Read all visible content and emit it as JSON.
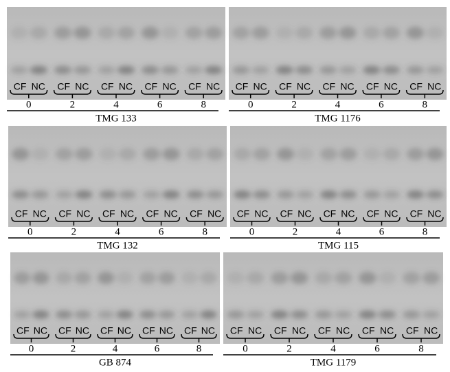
{
  "panels": [
    {
      "name": "TMG 133",
      "lanes": [
        "CF",
        "NC"
      ],
      "times": [
        "0",
        "2",
        "4",
        "6",
        "8"
      ]
    },
    {
      "name": "TMG 1176",
      "lanes": [
        "CF",
        "NC"
      ],
      "times": [
        "0",
        "2",
        "4",
        "6",
        "8"
      ]
    },
    {
      "name": "TMG 132",
      "lanes": [
        "CF",
        "NC"
      ],
      "times": [
        "0",
        "2",
        "4",
        "6",
        "8"
      ]
    },
    {
      "name": "TMG 115",
      "lanes": [
        "CF",
        "NC"
      ],
      "times": [
        "0",
        "2",
        "4",
        "6",
        "8"
      ]
    },
    {
      "name": "GB 874",
      "lanes": [
        "CF",
        "NC"
      ],
      "times": [
        "0",
        "2",
        "4",
        "6",
        "8"
      ]
    },
    {
      "name": "TMG 1179",
      "lanes": [
        "CF",
        "NC"
      ],
      "times": [
        "0",
        "2",
        "4",
        "6",
        "8"
      ]
    }
  ]
}
